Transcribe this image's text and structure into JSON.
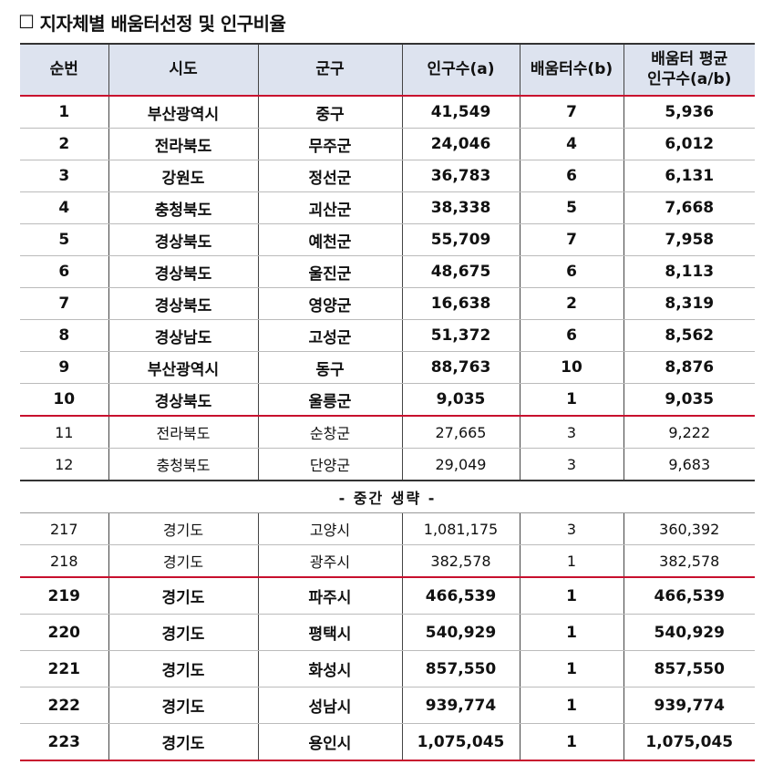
{
  "heading": {
    "box": "☐",
    "title": "지자체별 배움터선정 및 인구비율"
  },
  "columns": {
    "no": "순번",
    "sido": "시도",
    "gungu": "군구",
    "population": "인구수(a)",
    "count": "배움터수(b)",
    "avg_line1": "배움터 평균",
    "avg_line2": "인구수(a/b)"
  },
  "top_rows": [
    [
      "1",
      "부산광역시",
      "중구",
      "41,549",
      "7",
      "5,936"
    ],
    [
      "2",
      "전라북도",
      "무주군",
      "24,046",
      "4",
      "6,012"
    ],
    [
      "3",
      "강원도",
      "정선군",
      "36,783",
      "6",
      "6,131"
    ],
    [
      "4",
      "충청북도",
      "괴산군",
      "38,338",
      "5",
      "7,668"
    ],
    [
      "5",
      "경상북도",
      "예천군",
      "55,709",
      "7",
      "7,958"
    ],
    [
      "6",
      "경상북도",
      "울진군",
      "48,675",
      "6",
      "8,113"
    ],
    [
      "7",
      "경상북도",
      "영양군",
      "16,638",
      "2",
      "8,319"
    ],
    [
      "8",
      "경상남도",
      "고성군",
      "51,372",
      "6",
      "8,562"
    ],
    [
      "9",
      "부산광역시",
      "동구",
      "88,763",
      "10",
      "8,876"
    ],
    [
      "10",
      "경상북도",
      "울릉군",
      "9,035",
      "1",
      "9,035"
    ]
  ],
  "mid_rows_a": [
    [
      "11",
      "전라북도",
      "순창군",
      "27,665",
      "3",
      "9,222"
    ],
    [
      "12",
      "충청북도",
      "단양군",
      "29,049",
      "3",
      "9,683"
    ]
  ],
  "gap_label": "- 중간 생략 -",
  "mid_rows_b": [
    [
      "217",
      "경기도",
      "고양시",
      "1,081,175",
      "3",
      "360,392"
    ],
    [
      "218",
      "경기도",
      "광주시",
      "382,578",
      "1",
      "382,578"
    ]
  ],
  "bottom_rows": [
    [
      "219",
      "경기도",
      "파주시",
      "466,539",
      "1",
      "466,539"
    ],
    [
      "220",
      "경기도",
      "평택시",
      "540,929",
      "1",
      "540,929"
    ],
    [
      "221",
      "경기도",
      "화성시",
      "857,550",
      "1",
      "857,550"
    ],
    [
      "222",
      "경기도",
      "성남시",
      "939,774",
      "1",
      "939,774"
    ],
    [
      "223",
      "경기도",
      "용인시",
      "1,075,045",
      "1",
      "1,075,045"
    ]
  ]
}
